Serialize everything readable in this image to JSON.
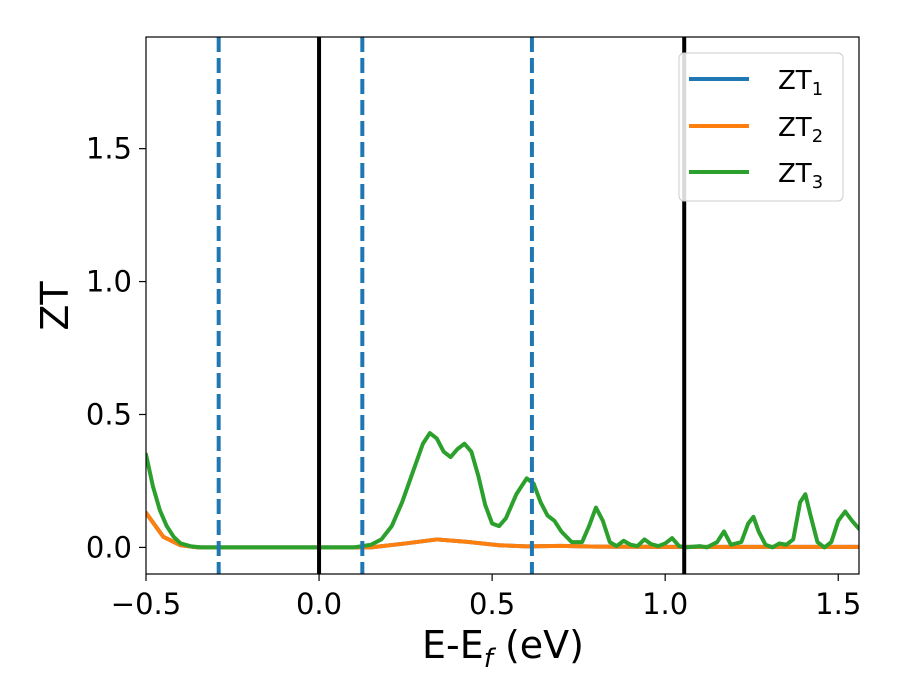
{
  "chart_data": {
    "type": "line",
    "title": "",
    "xlabel": {
      "main": "E-E",
      "sub": "f",
      "unit": " (eV)"
    },
    "ylabel": "ZT",
    "xlim": [
      -0.5,
      1.56
    ],
    "ylim": [
      -0.1,
      1.92
    ],
    "xticks": [
      -0.5,
      0.0,
      0.5,
      1.0,
      1.5
    ],
    "xtick_labels": [
      "−0.5",
      "0.0",
      "0.5",
      "1.0",
      "1.5"
    ],
    "yticks": [
      0.0,
      0.5,
      1.0,
      1.5
    ],
    "ytick_labels": [
      "0.0",
      "0.5",
      "1.0",
      "1.5"
    ],
    "grid": false,
    "legend_position": "top-right",
    "series": [
      {
        "name": "ZT",
        "subscript": "1",
        "color": "#1f77b4",
        "points": [
          [
            -0.5,
            0.13
          ],
          [
            -0.45,
            0.04
          ],
          [
            -0.4,
            0.008
          ],
          [
            -0.35,
            0.0
          ],
          [
            0.0,
            0.0
          ],
          [
            0.15,
            0.0
          ],
          [
            0.25,
            0.015
          ],
          [
            0.34,
            0.03
          ],
          [
            0.42,
            0.022
          ],
          [
            0.52,
            0.008
          ],
          [
            0.6,
            0.004
          ],
          [
            0.7,
            0.006
          ],
          [
            0.8,
            0.003
          ],
          [
            1.0,
            0.002
          ],
          [
            1.56,
            0.002
          ]
        ]
      },
      {
        "name": "ZT",
        "subscript": "2",
        "color": "#ff7f0e",
        "points": [
          [
            -0.5,
            0.13
          ],
          [
            -0.45,
            0.04
          ],
          [
            -0.4,
            0.008
          ],
          [
            -0.35,
            0.0
          ],
          [
            0.0,
            0.0
          ],
          [
            0.15,
            0.0
          ],
          [
            0.25,
            0.015
          ],
          [
            0.34,
            0.03
          ],
          [
            0.42,
            0.022
          ],
          [
            0.52,
            0.008
          ],
          [
            0.6,
            0.004
          ],
          [
            0.7,
            0.006
          ],
          [
            0.8,
            0.003
          ],
          [
            1.0,
            0.002
          ],
          [
            1.56,
            0.002
          ]
        ]
      },
      {
        "name": "ZT",
        "subscript": "3",
        "color": "#2ca02c",
        "points": [
          [
            -0.5,
            0.35
          ],
          [
            -0.48,
            0.23
          ],
          [
            -0.46,
            0.14
          ],
          [
            -0.44,
            0.08
          ],
          [
            -0.42,
            0.04
          ],
          [
            -0.4,
            0.015
          ],
          [
            -0.37,
            0.004
          ],
          [
            -0.34,
            0.0
          ],
          [
            0.0,
            0.0
          ],
          [
            0.1,
            0.0
          ],
          [
            0.15,
            0.01
          ],
          [
            0.18,
            0.03
          ],
          [
            0.21,
            0.08
          ],
          [
            0.24,
            0.17
          ],
          [
            0.27,
            0.28
          ],
          [
            0.3,
            0.39
          ],
          [
            0.32,
            0.43
          ],
          [
            0.34,
            0.41
          ],
          [
            0.36,
            0.36
          ],
          [
            0.38,
            0.34
          ],
          [
            0.4,
            0.37
          ],
          [
            0.42,
            0.39
          ],
          [
            0.44,
            0.36
          ],
          [
            0.46,
            0.27
          ],
          [
            0.48,
            0.16
          ],
          [
            0.5,
            0.09
          ],
          [
            0.52,
            0.08
          ],
          [
            0.54,
            0.11
          ],
          [
            0.57,
            0.2
          ],
          [
            0.6,
            0.26
          ],
          [
            0.62,
            0.24
          ],
          [
            0.64,
            0.17
          ],
          [
            0.66,
            0.12
          ],
          [
            0.68,
            0.1
          ],
          [
            0.7,
            0.06
          ],
          [
            0.73,
            0.02
          ],
          [
            0.76,
            0.02
          ],
          [
            0.78,
            0.08
          ],
          [
            0.8,
            0.15
          ],
          [
            0.82,
            0.1
          ],
          [
            0.84,
            0.02
          ],
          [
            0.86,
            0.005
          ],
          [
            0.88,
            0.025
          ],
          [
            0.9,
            0.01
          ],
          [
            0.92,
            0.005
          ],
          [
            0.94,
            0.03
          ],
          [
            0.96,
            0.012
          ],
          [
            0.98,
            0.005
          ],
          [
            1.0,
            0.015
          ],
          [
            1.02,
            0.035
          ],
          [
            1.04,
            0.005
          ],
          [
            1.06,
            0.0
          ],
          [
            1.1,
            0.005
          ],
          [
            1.12,
            0.0
          ],
          [
            1.15,
            0.02
          ],
          [
            1.17,
            0.06
          ],
          [
            1.19,
            0.01
          ],
          [
            1.22,
            0.02
          ],
          [
            1.24,
            0.09
          ],
          [
            1.255,
            0.115
          ],
          [
            1.27,
            0.06
          ],
          [
            1.29,
            0.01
          ],
          [
            1.31,
            0.0
          ],
          [
            1.33,
            0.015
          ],
          [
            1.35,
            0.01
          ],
          [
            1.37,
            0.03
          ],
          [
            1.39,
            0.17
          ],
          [
            1.405,
            0.2
          ],
          [
            1.42,
            0.12
          ],
          [
            1.44,
            0.02
          ],
          [
            1.46,
            0.0
          ],
          [
            1.48,
            0.02
          ],
          [
            1.5,
            0.1
          ],
          [
            1.52,
            0.135
          ],
          [
            1.54,
            0.1
          ],
          [
            1.56,
            0.07
          ]
        ]
      }
    ],
    "vlines": [
      {
        "x": -0.29,
        "color": "#1f77b4",
        "style": "dashed"
      },
      {
        "x": 0.0,
        "color": "#000000",
        "style": "solid"
      },
      {
        "x": 0.125,
        "color": "#1f77b4",
        "style": "dashed"
      },
      {
        "x": 0.615,
        "color": "#1f77b4",
        "style": "dashed"
      },
      {
        "x": 1.055,
        "color": "#000000",
        "style": "solid"
      }
    ]
  }
}
